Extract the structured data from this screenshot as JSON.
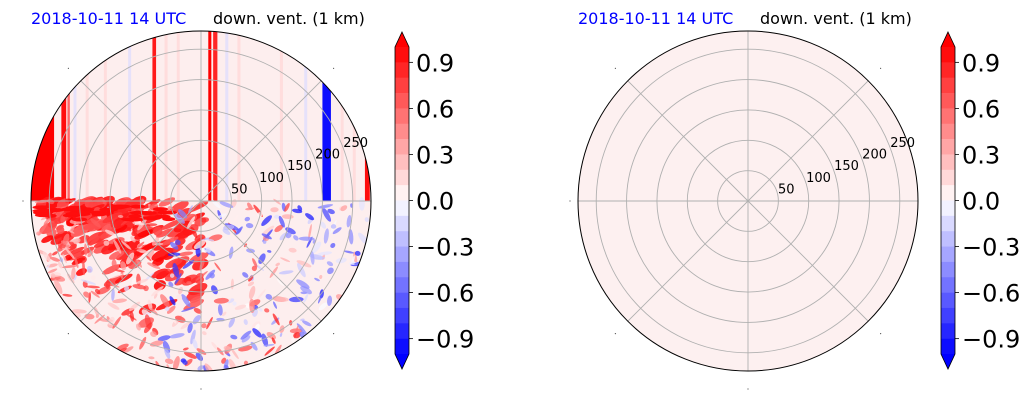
{
  "chart_data": [
    {
      "type": "heatmap",
      "projection": "polar",
      "title_left": "2018-10-11 14 UTC",
      "title_right": "down. vent. (1 km)",
      "title_left_color": "#0000ff",
      "radial_ticks": [
        50,
        100,
        150,
        200,
        250
      ],
      "rmax": 280,
      "angular_gridlines_deg": [
        0,
        45,
        90,
        135,
        180,
        225,
        270,
        315
      ],
      "grid": true,
      "colormap": "bwr",
      "colorbar": {
        "min": -1.0,
        "max": 1.0,
        "levels": 21,
        "ticks": [
          -0.9,
          -0.6,
          -0.3,
          0.0,
          0.3,
          0.6,
          0.9
        ],
        "tick_labels": [
          "−0.9",
          "−0.6",
          "−0.3",
          "0.0",
          "0.3",
          "0.6",
          "0.9"
        ],
        "extend": "both"
      },
      "field_description": "upper half: vertical streaks, strong red near x=-260, -230, -80, +20 (km); blue streak near x=+210; lower half: red/blue noisy speckle",
      "fill_color_base": "#fdeeee"
    },
    {
      "type": "heatmap",
      "projection": "polar",
      "title_left": "2018-10-11 14 UTC",
      "title_right": "down. vent. (1 km)",
      "title_left_color": "#0000ff",
      "radial_ticks": [
        50,
        100,
        150,
        200,
        250
      ],
      "rmax": 280,
      "angular_gridlines_deg": [
        0,
        45,
        90,
        135,
        180,
        225,
        270,
        315
      ],
      "grid": true,
      "colormap": "bwr",
      "colorbar": {
        "min": -1.0,
        "max": 1.0,
        "levels": 21,
        "ticks": [
          -0.9,
          -0.6,
          -0.3,
          0.0,
          0.3,
          0.6,
          0.9
        ],
        "tick_labels": [
          "−0.9",
          "−0.6",
          "−0.3",
          "0.0",
          "0.3",
          "0.6",
          "0.9"
        ],
        "extend": "both"
      },
      "uniform_value": 0.05,
      "fill_color_base": "#fdf0f0"
    }
  ]
}
